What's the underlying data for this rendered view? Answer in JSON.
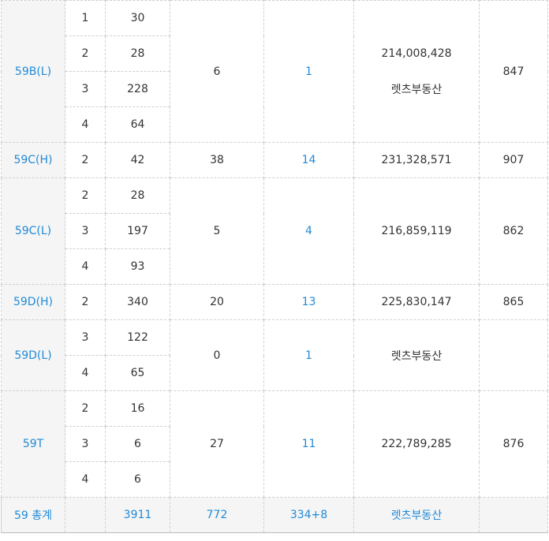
{
  "rows": [
    {
      "type": "59B(L)",
      "subs": [
        {
          "a": "1",
          "b": "30"
        },
        {
          "a": "2",
          "b": "28"
        },
        {
          "a": "3",
          "b": "228"
        },
        {
          "a": "4",
          "b": "64"
        }
      ],
      "c": "6",
      "d": "1",
      "e": [
        "214,008,428",
        "렛츠부동산"
      ],
      "f": "847"
    },
    {
      "type": "59C(H)",
      "subs": [
        {
          "a": "2",
          "b": "42"
        }
      ],
      "c": "38",
      "d": "14",
      "e": [
        "231,328,571"
      ],
      "f": "907"
    },
    {
      "type": "59C(L)",
      "subs": [
        {
          "a": "2",
          "b": "28"
        },
        {
          "a": "3",
          "b": "197"
        },
        {
          "a": "4",
          "b": "93"
        }
      ],
      "c": "5",
      "d": "4",
      "e": [
        "216,859,119"
      ],
      "f": "862"
    },
    {
      "type": "59D(H)",
      "subs": [
        {
          "a": "2",
          "b": "340"
        }
      ],
      "c": "20",
      "d": "13",
      "e": [
        "225,830,147"
      ],
      "f": "865"
    },
    {
      "type": "59D(L)",
      "subs": [
        {
          "a": "3",
          "b": "122"
        },
        {
          "a": "4",
          "b": "65"
        }
      ],
      "c": "0",
      "d": "1",
      "e": [
        "렛츠부동산"
      ],
      "f": ""
    },
    {
      "type": "59T",
      "subs": [
        {
          "a": "2",
          "b": "16"
        },
        {
          "a": "3",
          "b": "6"
        },
        {
          "a": "4",
          "b": "6"
        }
      ],
      "c": "27",
      "d": "11",
      "e": [
        "222,789,285"
      ],
      "f": "876"
    }
  ],
  "total": {
    "type": "59 총계",
    "a": "",
    "b": "3911",
    "c": "772",
    "d": "334+8",
    "e": "렛츠부동산",
    "f": ""
  }
}
